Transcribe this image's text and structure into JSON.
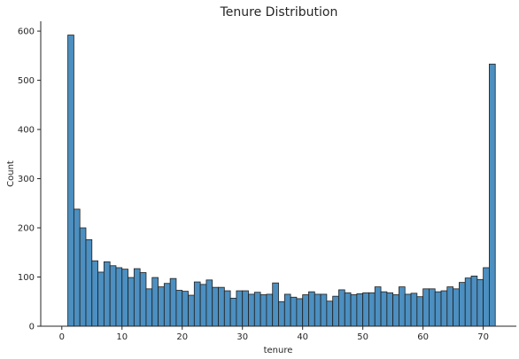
{
  "chart_data": {
    "type": "bar",
    "title": "Tenure Distribution",
    "xlabel": "tenure",
    "ylabel": "Count",
    "xlim": [
      -3.5,
      75.5
    ],
    "ylim": [
      0,
      620
    ],
    "xticks": [
      0,
      10,
      20,
      30,
      40,
      50,
      60,
      70
    ],
    "yticks": [
      0,
      100,
      200,
      300,
      400,
      500,
      600
    ],
    "bin_start": 1,
    "bin_width": 1,
    "bar_color": "#4c8fc0",
    "edge_color": "#1f1f1f",
    "grid": false,
    "counts": [
      592,
      238,
      200,
      176,
      133,
      110,
      131,
      123,
      119,
      116,
      99,
      117,
      109,
      76,
      99,
      80,
      87,
      97,
      73,
      71,
      63,
      90,
      85,
      94,
      79,
      79,
      72,
      57,
      72,
      72,
      65,
      69,
      64,
      65,
      88,
      50,
      65,
      59,
      56,
      64,
      70,
      65,
      65,
      51,
      61,
      74,
      68,
      64,
      66,
      68,
      68,
      80,
      70,
      68,
      64,
      80,
      65,
      67,
      60,
      76,
      76,
      70,
      72,
      80,
      76,
      89,
      98,
      102,
      95,
      119,
      533
    ]
  }
}
